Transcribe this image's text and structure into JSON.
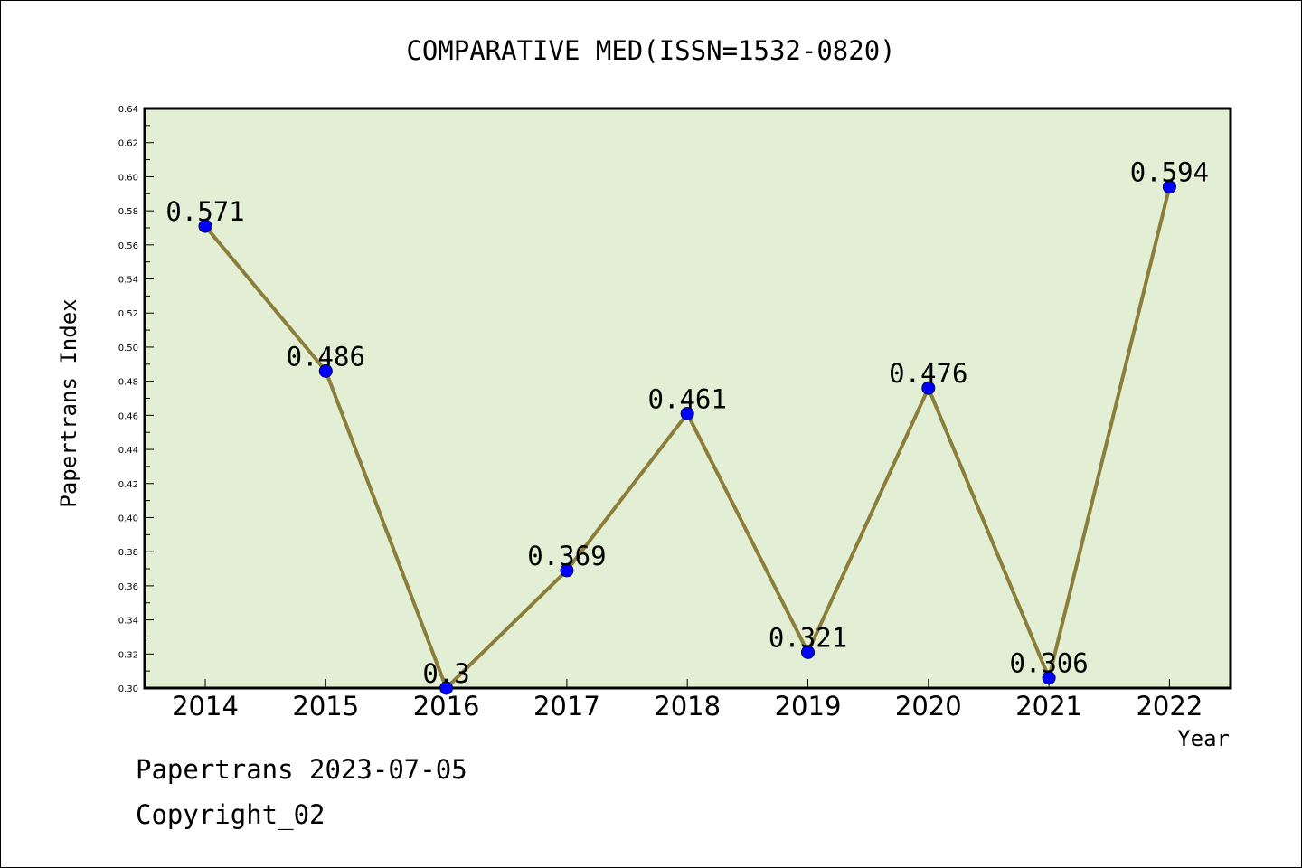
{
  "chart_data": {
    "type": "line",
    "title": "COMPARATIVE MED(ISSN=1532-0820)",
    "xlabel": "Year",
    "ylabel": "Papertrans Index",
    "categories": [
      "2014",
      "2015",
      "2016",
      "2017",
      "2018",
      "2019",
      "2020",
      "2021",
      "2022"
    ],
    "values": [
      0.571,
      0.486,
      0.3,
      0.369,
      0.461,
      0.321,
      0.476,
      0.306,
      0.594
    ],
    "data_labels": [
      "0.571",
      "0.486",
      "0.3",
      "0.369",
      "0.461",
      "0.321",
      "0.476",
      "0.306",
      "0.594"
    ],
    "ylim": [
      0.3,
      0.64
    ],
    "yticks": [
      "0.30",
      "0.32",
      "0.34",
      "0.36",
      "0.38",
      "0.40",
      "0.42",
      "0.44",
      "0.46",
      "0.48",
      "0.50",
      "0.52",
      "0.54",
      "0.56",
      "0.58",
      "0.60",
      "0.62",
      "0.64"
    ],
    "grid": false,
    "legend": "none",
    "colors": {
      "plot_background": "#e2efd4",
      "line": "#8b7d3a",
      "marker": "#0000ff"
    }
  },
  "footer": {
    "line1": "Papertrans 2023-07-05",
    "line2": "Copyright_02"
  }
}
